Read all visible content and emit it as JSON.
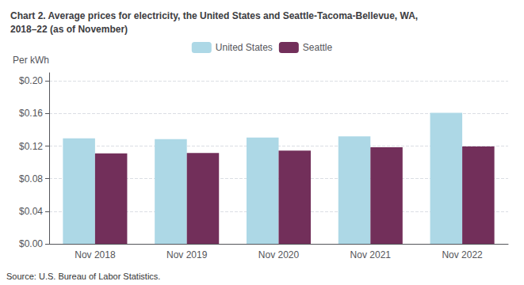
{
  "chart_data": {
    "type": "bar",
    "title": "Chart 2. Average prices for electricity, the United States and Seattle-Tacoma-Bellevue, WA,\n2018–22 (as of November)",
    "ylabel": "Per kWh",
    "annotations": [
      "Source: U.S. Bureau of Labor Statistics."
    ],
    "categories": [
      "Nov 2018",
      "Nov 2019",
      "Nov 2020",
      "Nov 2021",
      "Nov 2022"
    ],
    "series": [
      {
        "name": "United States",
        "color": "#ADD8E6",
        "values": [
          0.1295,
          0.1285,
          0.1305,
          0.132,
          0.161
        ]
      },
      {
        "name": "Seattle",
        "color": "#722F5A",
        "values": [
          0.111,
          0.1115,
          0.1145,
          0.1185,
          0.1195
        ]
      }
    ],
    "ylim": [
      0,
      0.21
    ],
    "yticks": [
      {
        "value": 0.0,
        "label": "$0.00"
      },
      {
        "value": 0.04,
        "label": "$0.04"
      },
      {
        "value": 0.08,
        "label": "$0.08"
      },
      {
        "value": 0.12,
        "label": "$0.12"
      },
      {
        "value": 0.16,
        "label": "$0.16"
      },
      {
        "value": 0.2,
        "label": "$0.20"
      }
    ],
    "grid": true,
    "legend": "top"
  }
}
